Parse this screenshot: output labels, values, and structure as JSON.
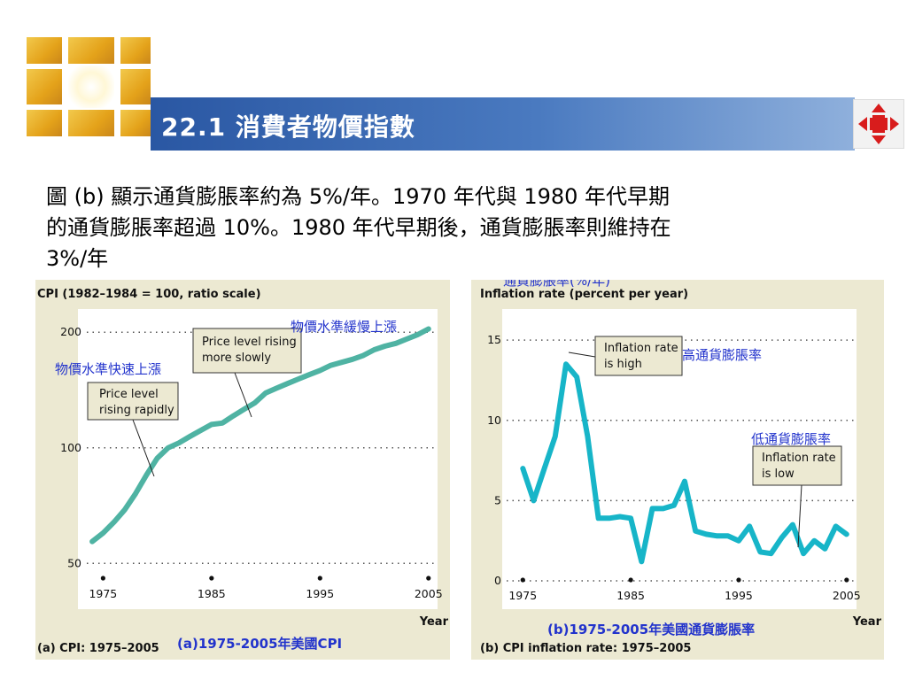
{
  "slide": {
    "title": "22.1 消費者物價指數",
    "body_line1": "圖 (b) 顯示通貨膨脹率約為 5%/年。1970 年代與 1980 年代早期",
    "body_line2": "的通貨膨脹率超過 10%。1980 年代早期後，通貨膨脹率則維持在",
    "body_line3": "3%/年"
  },
  "colors": {
    "series": "#4fb3a3",
    "series_b": "#17b5c8",
    "panel": "#ece9d2",
    "title_bar": "#2a57a3",
    "annotation": "#2233cc"
  },
  "icons": {
    "logo": "cross-light-logo",
    "nav": "red-four-arrows-icon"
  },
  "chart_data": [
    {
      "type": "line",
      "title": "CPI (1982–1984 = 100, ratio scale)",
      "xlabel": "Year",
      "caption": "(a) CPI: 1975–2005",
      "caption_zh": "(a)1975-2005年美國CPI",
      "scale": "log",
      "ylim": [
        48,
        210
      ],
      "xlim": [
        1973.5,
        2006
      ],
      "yticks": [
        50,
        100,
        200
      ],
      "ytick_labels": [
        "50",
        "100",
        "200"
      ],
      "xticks": [
        1975,
        1985,
        1995,
        2005
      ],
      "xtick_labels": [
        "1975",
        "1985",
        "1995",
        "2005"
      ],
      "grid": "dotted horizontal",
      "x": [
        1974,
        1975,
        1976,
        1977,
        1978,
        1979,
        1980,
        1981,
        1982,
        1983,
        1984,
        1985,
        1986,
        1987,
        1988,
        1989,
        1990,
        1991,
        1992,
        1993,
        1994,
        1995,
        1996,
        1997,
        1998,
        1999,
        2000,
        2001,
        2002,
        2003,
        2004,
        2005
      ],
      "values": [
        57,
        60,
        64,
        69,
        76,
        85,
        94,
        100,
        103,
        107,
        111,
        115,
        116,
        121,
        126,
        131,
        139,
        143,
        147,
        151,
        155,
        159,
        164,
        167,
        170,
        174,
        180,
        184,
        187,
        192,
        197,
        204
      ],
      "annotations": [
        {
          "text_line1": "Price level rising",
          "text_line2": "more slowly"
        },
        {
          "text_line1": "Price level",
          "text_line2": "rising rapidly"
        }
      ],
      "annotations_zh": [
        "物價水準緩慢上漲",
        "物價水準快速上漲"
      ]
    },
    {
      "type": "line",
      "title": "Inflation rate (percent per year)",
      "title_zh": "通貨膨脹率(%/年)",
      "xlabel": "Year",
      "caption": "(b) CPI inflation rate: 1975–2005",
      "caption_zh": "(b)1975-2005年美國通貨膨脹率",
      "ylim": [
        0,
        16
      ],
      "xlim": [
        1973.5,
        2006
      ],
      "yticks": [
        0,
        5,
        10,
        15
      ],
      "ytick_labels": [
        "0",
        "5",
        "10",
        "15"
      ],
      "xticks": [
        1975,
        1985,
        1995,
        2005
      ],
      "xtick_labels": [
        "1975",
        "1985",
        "1995",
        "2005"
      ],
      "grid": "dotted horizontal",
      "x": [
        1975,
        1976,
        1977,
        1978,
        1979,
        1980,
        1981,
        1982,
        1983,
        1984,
        1985,
        1986,
        1987,
        1988,
        1989,
        1990,
        1991,
        1992,
        1993,
        1994,
        1995,
        1996,
        1997,
        1998,
        1999,
        2000,
        2001,
        2002,
        2003,
        2004,
        2005
      ],
      "values": [
        7.0,
        5.0,
        7.0,
        9.0,
        13.5,
        12.7,
        9.0,
        3.9,
        3.9,
        4.0,
        3.9,
        1.2,
        4.5,
        4.5,
        4.7,
        6.2,
        3.1,
        2.9,
        2.8,
        2.8,
        2.5,
        3.4,
        1.8,
        1.7,
        2.7,
        3.5,
        1.7,
        2.5,
        2.0,
        3.4,
        2.9
      ],
      "annotations": [
        {
          "text_line1": "Inflation rate",
          "text_line2": "is high"
        },
        {
          "text_line1": "Inflation rate",
          "text_line2": "is low"
        }
      ],
      "annotations_zh": [
        "高通貨膨脹率",
        "低通貨膨脹率"
      ]
    }
  ]
}
